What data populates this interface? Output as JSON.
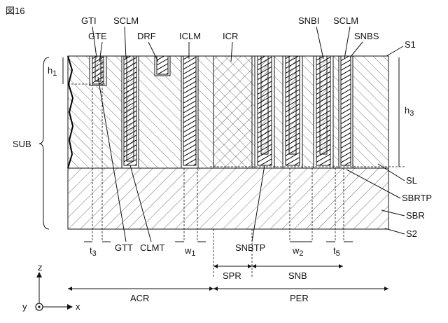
{
  "figure_label": "図16",
  "labels": {
    "GTI": "GTI",
    "GTE": "GTE",
    "SCLM_left": "SCLM",
    "DRF": "DRF",
    "ICLM": "ICLM",
    "ICR": "ICR",
    "SNBI": "SNBI",
    "SCLM_right": "SCLM",
    "SNBS": "SNBS",
    "S1": "S1",
    "h1": "h",
    "h1_sub": "1",
    "h3": "h",
    "h3_sub": "3",
    "SUB": "SUB",
    "SL": "SL",
    "SBRTP": "SBRTP",
    "SBR": "SBR",
    "S2": "S2",
    "t3": "t",
    "t3_sub": "3",
    "GTT": "GTT",
    "CLMT": "CLMT",
    "w1": "w",
    "w1_sub": "1",
    "SNBTP": "SNBTP",
    "w2": "w",
    "w2_sub": "2",
    "t5": "t",
    "t5_sub": "5",
    "SPR": "SPR",
    "SNB": "SNB",
    "ACR": "ACR",
    "PER": "PER",
    "axis_z": "z",
    "axis_y": "y",
    "axis_x": "x"
  }
}
